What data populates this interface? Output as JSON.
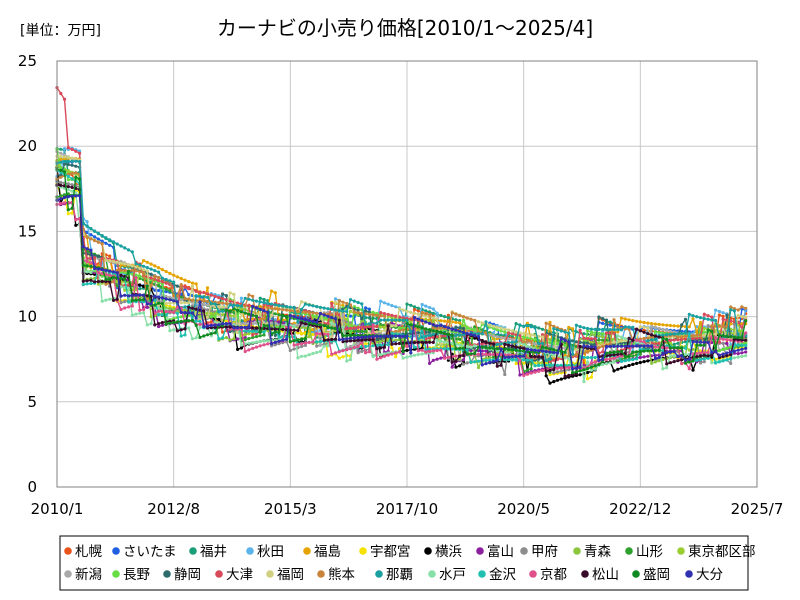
{
  "chart_data": {
    "type": "line",
    "title": "カーナビの小売り価格[2010/1～2025/4]",
    "unit_label": "[単位：万円]",
    "xlabel": "",
    "ylabel": "",
    "x_ticks": [
      "2010/1",
      "2012/8",
      "2015/3",
      "2017/10",
      "2020/5",
      "2022/12",
      "2025/7"
    ],
    "y_ticks": [
      "0",
      "5",
      "10",
      "15",
      "20",
      "25"
    ],
    "ylim": [
      0,
      25
    ],
    "xlim": [
      "2010/1",
      "2025/7"
    ],
    "grid": true,
    "legend_position": "bottom",
    "series": [
      {
        "name": "札幌",
        "color": "#e8541a"
      },
      {
        "name": "さいたま",
        "color": "#1f5fe0"
      },
      {
        "name": "福井",
        "color": "#1a9e77"
      },
      {
        "name": "秋田",
        "color": "#5ab4ea"
      },
      {
        "name": "福島",
        "color": "#e6a400"
      },
      {
        "name": "宇都宮",
        "color": "#f5e200"
      },
      {
        "name": "横浜",
        "color": "#000000"
      },
      {
        "name": "富山",
        "color": "#8b1f9e"
      },
      {
        "name": "甲府",
        "color": "#8c8c8c"
      },
      {
        "name": "青森",
        "color": "#8cc63f"
      },
      {
        "name": "山形",
        "color": "#2ea02e"
      },
      {
        "name": "東京都区部",
        "color": "#9acd32"
      },
      {
        "name": "新潟",
        "color": "#a9a9a9"
      },
      {
        "name": "長野",
        "color": "#66dd44"
      },
      {
        "name": "静岡",
        "color": "#2e6b6b"
      },
      {
        "name": "大津",
        "color": "#d84a5a"
      },
      {
        "name": "福岡",
        "color": "#d0d080"
      },
      {
        "name": "熊本",
        "color": "#c8843a"
      },
      {
        "name": "那覇",
        "color": "#1aa0a0"
      },
      {
        "name": "水戸",
        "color": "#88e0a8"
      },
      {
        "name": "金沢",
        "color": "#20c0b0"
      },
      {
        "name": "京都",
        "color": "#e0508a"
      },
      {
        "name": "松山",
        "color": "#3a0a2a"
      },
      {
        "name": "盛岡",
        "color": "#108a20"
      },
      {
        "name": "大分",
        "color": "#3030b0"
      }
    ],
    "trend_points": [
      {
        "x": 2010.0,
        "y": 18.5
      },
      {
        "x": 2010.5,
        "y": 17.5
      },
      {
        "x": 2010.6,
        "y": 13.0
      },
      {
        "x": 2011.5,
        "y": 12.0
      },
      {
        "x": 2012.5,
        "y": 10.5
      },
      {
        "x": 2014.0,
        "y": 9.7
      },
      {
        "x": 2016.0,
        "y": 9.3
      },
      {
        "x": 2018.0,
        "y": 9.0
      },
      {
        "x": 2019.5,
        "y": 8.3
      },
      {
        "x": 2021.5,
        "y": 7.6
      },
      {
        "x": 2022.0,
        "y": 8.5
      },
      {
        "x": 2024.0,
        "y": 8.5
      },
      {
        "x": 2025.25,
        "y": 8.9
      }
    ]
  }
}
